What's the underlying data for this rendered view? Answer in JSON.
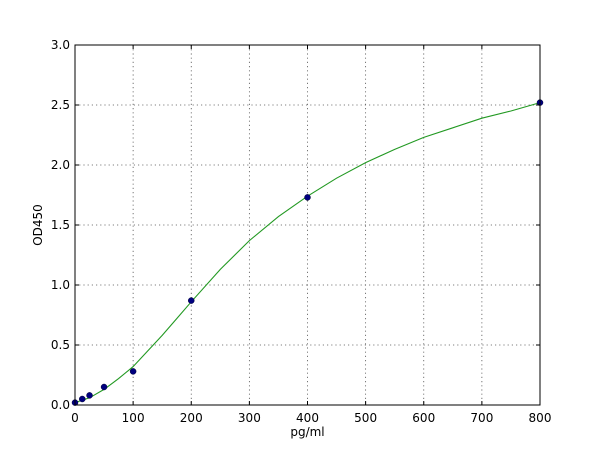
{
  "chart_data": {
    "type": "scatter",
    "title": "",
    "xlabel": "pg/ml",
    "ylabel": "OD450",
    "xlim": [
      0,
      800
    ],
    "ylim": [
      0,
      3.0
    ],
    "x_ticks": [
      0,
      100,
      200,
      300,
      400,
      500,
      600,
      700,
      800
    ],
    "x_tick_labels": [
      "0",
      "100",
      "200",
      "300",
      "400",
      "500",
      "600",
      "700",
      "800"
    ],
    "y_ticks": [
      0,
      0.5,
      1.0,
      1.5,
      2.0,
      2.5,
      3.0
    ],
    "y_tick_labels": [
      "0.0",
      "0.5",
      "1.0",
      "1.5",
      "2.0",
      "2.5",
      "3.0"
    ],
    "grid": true,
    "series": [
      {
        "kind": "points",
        "color": "#00007f",
        "x": [
          0,
          12.5,
          25,
          50,
          100,
          200,
          400,
          800
        ],
        "y": [
          0.02,
          0.05,
          0.08,
          0.15,
          0.28,
          0.87,
          1.73,
          2.52
        ]
      },
      {
        "kind": "fit-curve",
        "color": "#229922",
        "x": [
          0,
          25,
          50,
          75,
          100,
          125,
          150,
          175,
          200,
          250,
          300,
          350,
          400,
          450,
          500,
          550,
          600,
          650,
          700,
          750,
          800
        ],
        "y": [
          0.02,
          0.06,
          0.13,
          0.22,
          0.32,
          0.45,
          0.58,
          0.72,
          0.86,
          1.13,
          1.37,
          1.57,
          1.74,
          1.89,
          2.02,
          2.13,
          2.23,
          2.31,
          2.39,
          2.45,
          2.52
        ]
      }
    ]
  }
}
